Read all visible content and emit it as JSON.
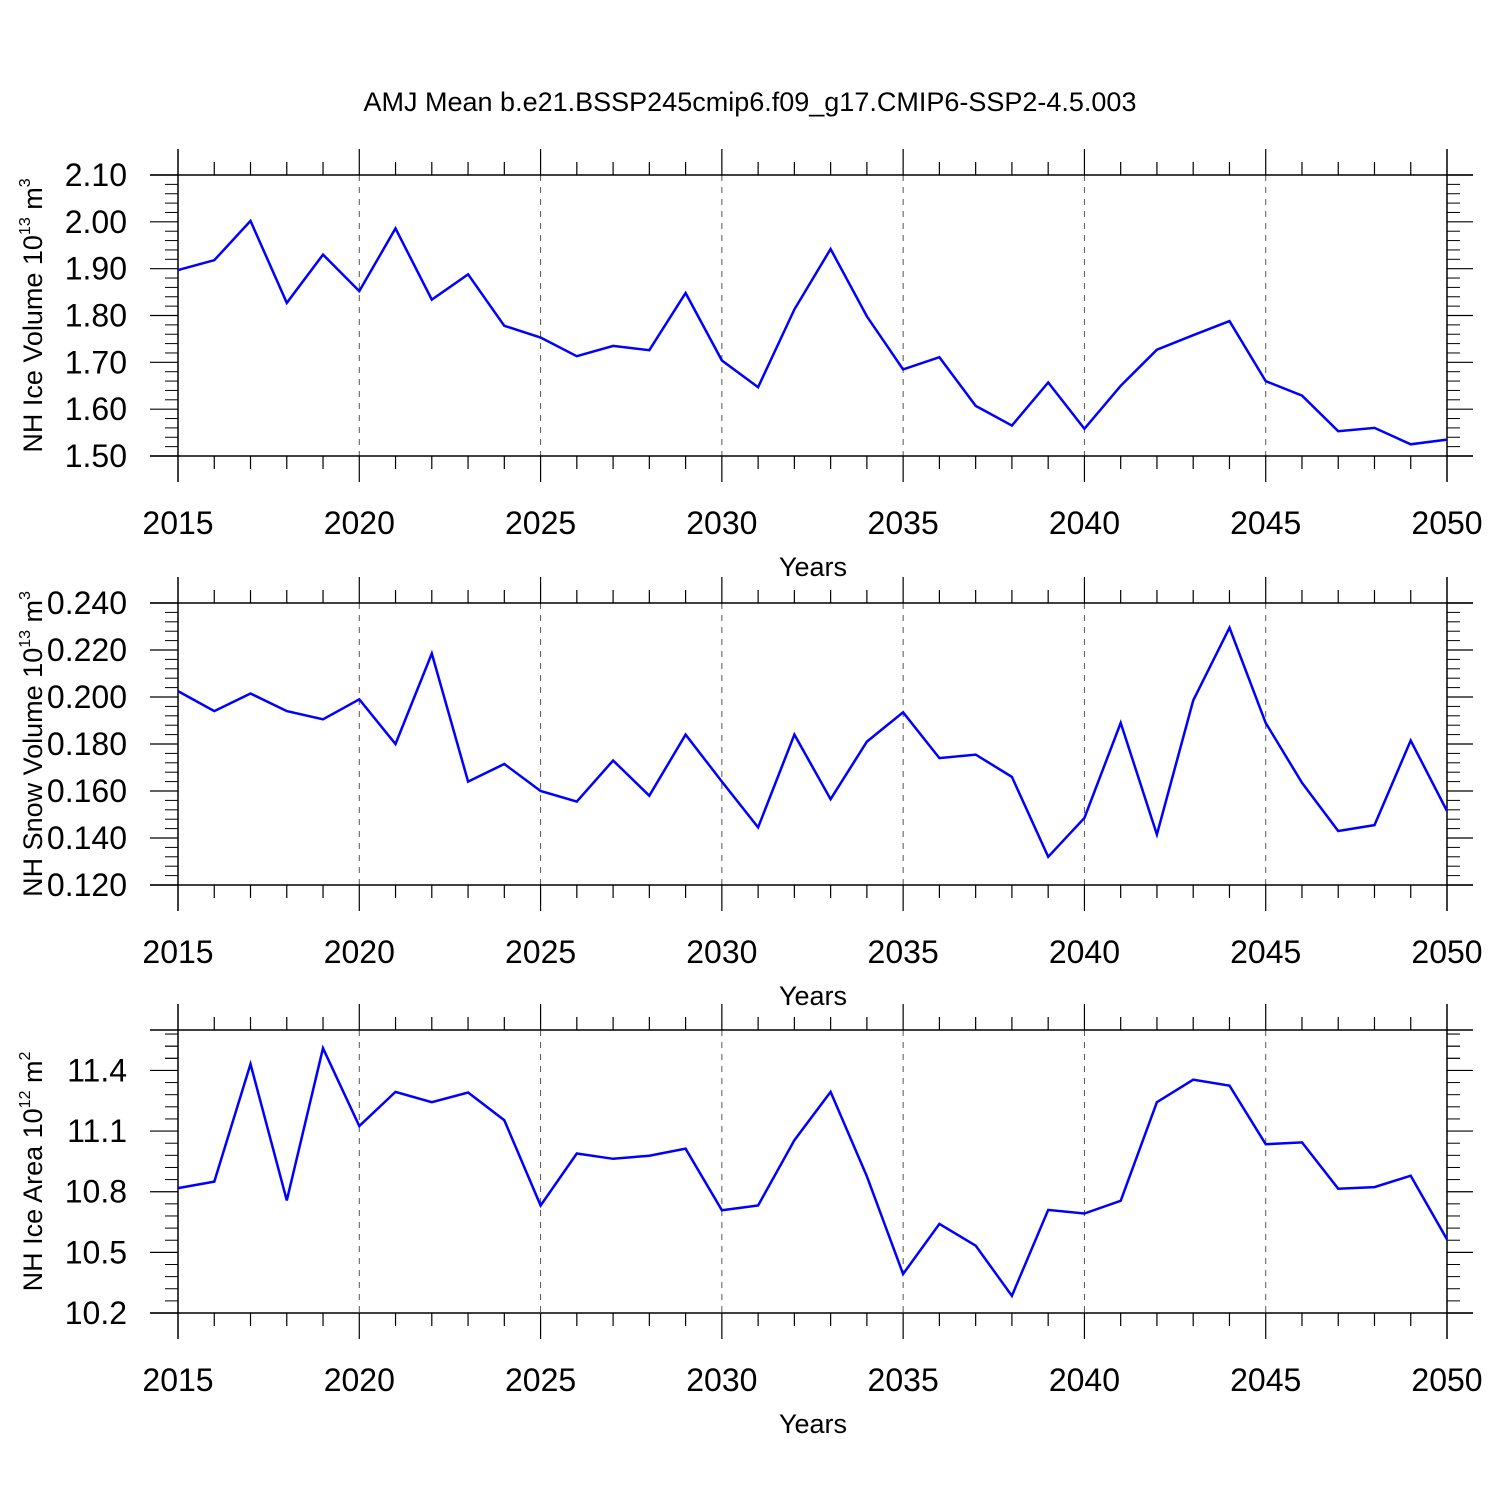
{
  "title": "AMJ Mean b.e21.BSSP245cmip6.f09_g17.CMIP6-SSP2-4.5.003",
  "colors": {
    "line": "#0000ff",
    "axis": "#000000",
    "grid": "#555555"
  },
  "chart_data": [
    {
      "type": "line",
      "xlabel": "Years",
      "ylabel": {
        "main": "NH Ice Volume 10",
        "exp": "13",
        "unit": " m",
        "unit_exp": "3"
      },
      "xlim": [
        2015,
        2050
      ],
      "ylim": [
        1.5,
        2.1
      ],
      "x_ticks": [
        2015,
        2020,
        2025,
        2030,
        2035,
        2040,
        2045,
        2050
      ],
      "y_ticks": [
        1.5,
        1.6,
        1.7,
        1.8,
        1.9,
        2.0,
        2.1
      ],
      "y_tick_labels": [
        "1.50",
        "1.60",
        "1.70",
        "1.80",
        "1.90",
        "2.00",
        "2.10"
      ],
      "x": [
        2015,
        2016,
        2017,
        2018,
        2019,
        2020,
        2021,
        2022,
        2023,
        2024,
        2025,
        2026,
        2027,
        2028,
        2029,
        2030,
        2031,
        2032,
        2033,
        2034,
        2035,
        2036,
        2037,
        2038,
        2039,
        2040,
        2041,
        2042,
        2043,
        2044,
        2045,
        2046,
        2047,
        2048,
        2049,
        2050
      ],
      "y": [
        1.897,
        1.918,
        2.002,
        1.827,
        1.93,
        1.852,
        1.986,
        1.834,
        1.888,
        1.778,
        1.753,
        1.713,
        1.735,
        1.726,
        1.848,
        1.704,
        1.647,
        1.813,
        1.942,
        1.798,
        1.685,
        1.711,
        1.607,
        1.565,
        1.657,
        1.558,
        1.65,
        1.727,
        1.758,
        1.788,
        1.66,
        1.629,
        1.553,
        1.56,
        1.525,
        1.535
      ]
    },
    {
      "type": "line",
      "xlabel": "Years",
      "ylabel": {
        "main": "NH Snow Volume 10",
        "exp": "13",
        "unit": " m",
        "unit_exp": "3"
      },
      "xlim": [
        2015,
        2050
      ],
      "ylim": [
        0.12,
        0.24
      ],
      "x_ticks": [
        2015,
        2020,
        2025,
        2030,
        2035,
        2040,
        2045,
        2050
      ],
      "y_ticks": [
        0.12,
        0.14,
        0.16,
        0.18,
        0.2,
        0.22,
        0.24
      ],
      "y_tick_labels": [
        "0.120",
        "0.140",
        "0.160",
        "0.180",
        "0.200",
        "0.220",
        "0.240"
      ],
      "x": [
        2015,
        2016,
        2017,
        2018,
        2019,
        2020,
        2021,
        2022,
        2023,
        2024,
        2025,
        2026,
        2027,
        2028,
        2029,
        2030,
        2031,
        2032,
        2033,
        2034,
        2035,
        2036,
        2037,
        2038,
        2039,
        2040,
        2041,
        2042,
        2043,
        2044,
        2045,
        2046,
        2047,
        2048,
        2049,
        2050
      ],
      "y": [
        0.2025,
        0.194,
        0.2015,
        0.194,
        0.1905,
        0.199,
        0.18,
        0.2185,
        0.164,
        0.1715,
        0.16,
        0.1555,
        0.173,
        0.158,
        0.184,
        0.164,
        0.1445,
        0.184,
        0.1565,
        0.181,
        0.1935,
        0.174,
        0.1755,
        0.166,
        0.132,
        0.1485,
        0.189,
        0.1415,
        0.1985,
        0.2295,
        0.189,
        0.1635,
        0.143,
        0.1455,
        0.1815,
        0.1515
      ]
    },
    {
      "type": "line",
      "xlabel": "Years",
      "ylabel": {
        "main": "NH Ice Area 10",
        "exp": "12",
        "unit": " m",
        "unit_exp": "2"
      },
      "xlim": [
        2015,
        2050
      ],
      "ylim": [
        10.2,
        11.6
      ],
      "x_ticks": [
        2015,
        2020,
        2025,
        2030,
        2035,
        2040,
        2045,
        2050
      ],
      "y_ticks": [
        10.2,
        10.5,
        10.8,
        11.1,
        11.4
      ],
      "y_tick_labels": [
        "10.2",
        "10.5",
        "10.8",
        "11.1",
        "11.4"
      ],
      "x": [
        2015,
        2016,
        2017,
        2018,
        2019,
        2020,
        2021,
        2022,
        2023,
        2024,
        2025,
        2026,
        2027,
        2028,
        2029,
        2030,
        2031,
        2032,
        2033,
        2034,
        2035,
        2036,
        2037,
        2038,
        2039,
        2040,
        2041,
        2042,
        2043,
        2044,
        2045,
        2046,
        2047,
        2048,
        2049,
        2050
      ],
      "y": [
        10.818,
        10.85,
        11.432,
        10.757,
        11.51,
        11.125,
        11.294,
        11.243,
        11.291,
        11.154,
        10.732,
        10.989,
        10.963,
        10.978,
        11.013,
        10.708,
        10.732,
        11.055,
        11.294,
        10.876,
        10.393,
        10.641,
        10.533,
        10.285,
        10.71,
        10.692,
        10.755,
        11.243,
        11.354,
        11.325,
        11.035,
        11.044,
        10.815,
        10.823,
        10.879,
        10.564
      ]
    }
  ]
}
